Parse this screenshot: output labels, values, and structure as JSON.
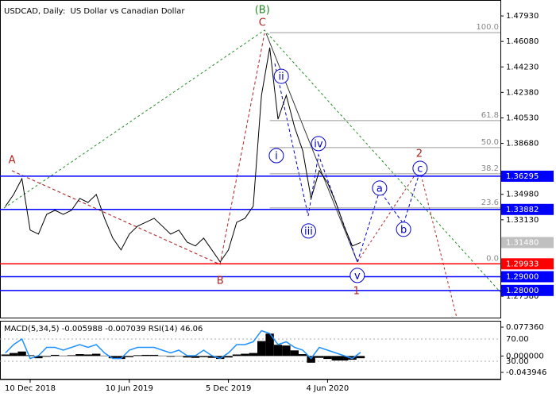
{
  "chart_data": [
    {
      "type": "line",
      "title": "USDCAD, Daily:  US Dollar vs Canadian Dollar",
      "categories": [
        null,
        null,
        null,
        "10 Dec 2018",
        null,
        null,
        null,
        null,
        null,
        null,
        null,
        null,
        null,
        null,
        null,
        "10 Jun 2019",
        null,
        null,
        null,
        null,
        null,
        null,
        null,
        null,
        null,
        null,
        null,
        "5 Dec 2019",
        null,
        null,
        null,
        null,
        null,
        null,
        null,
        null,
        null,
        null,
        null,
        "4 Jun 2020",
        null,
        null,
        null,
        null,
        null,
        null,
        null,
        null,
        null,
        null,
        null,
        null,
        null,
        null,
        null,
        null,
        null,
        null,
        null,
        null
      ],
      "values": [
        1.3411,
        1.3497,
        1.3612,
        1.3238,
        1.3209,
        1.3353,
        1.3382,
        1.3353,
        1.3382,
        1.3468,
        1.3439,
        1.3497,
        1.3324,
        1.318,
        1.3094,
        1.3209,
        1.3267,
        1.3295,
        1.3324,
        1.3267,
        1.3209,
        1.3238,
        1.3151,
        1.3123,
        1.318,
        1.3094,
        1.3007,
        1.3094,
        1.3295,
        1.3324,
        1.3411,
        1.4217,
        1.4563,
        1.4044,
        1.4217,
        1.3987,
        1.3814,
        1.3468,
        1.367,
        1.3583,
        1.3439,
        1.3267,
        1.3123,
        1.3148,
        null,
        null,
        null,
        null,
        null,
        null,
        null,
        null,
        null,
        null,
        null,
        null,
        null,
        null,
        null,
        null
      ],
      "color": "#000000",
      "ylim": [
        1.2603,
        1.488
      ],
      "yticks": [
        {
          "value": 1.4793,
          "label": "1.47930"
        },
        {
          "value": 1.4608,
          "label": "1.46080"
        },
        {
          "value": 1.4423,
          "label": "1.44230"
        },
        {
          "value": 1.4238,
          "label": "1.42380"
        },
        {
          "value": 1.4053,
          "label": "1.40530"
        },
        {
          "value": 1.3868,
          "label": "1.38680"
        },
        {
          "value": 1.3498,
          "label": "1.34980"
        },
        {
          "value": 1.3313,
          "label": "1.33130"
        },
        {
          "value": 1.2758,
          "label": "1.27580"
        }
      ],
      "levels": [
        {
          "value": 1.36295,
          "color": "#0000ff"
        },
        {
          "value": 1.33882,
          "color": "#0000ff"
        },
        {
          "value": 1.3148,
          "label": "1.31480",
          "color": "#c0c0c0"
        },
        {
          "value": 1.29933,
          "color": "#ff0000"
        },
        {
          "value": 1.29,
          "label": "1.29000",
          "color": "#0000ff"
        },
        {
          "value": 1.28,
          "label": "1.28000",
          "color": "#0000ff"
        }
      ],
      "fib_levels": [
        {
          "label": "100.0",
          "value": 1.4672
        },
        {
          "label": "61.8",
          "value": 1.4033
        },
        {
          "label": "50.0",
          "value": 1.3837
        },
        {
          "label": "38.2",
          "value": 1.3647
        },
        {
          "label": "23.6",
          "value": 1.3399
        },
        {
          "label": "0.0",
          "value": 1.2993
        }
      ],
      "annotations": [
        {
          "text": "(B)",
          "x": 31.1,
          "y": 1.4839,
          "color": "#228b22",
          "circled": false
        },
        {
          "text": "C",
          "x": 31.1,
          "y": 1.4747,
          "color": "#b22222",
          "circled": false
        },
        {
          "text": "A",
          "x": 0.8,
          "y": 1.375,
          "color": "#b22222",
          "circled": false
        },
        {
          "text": "B",
          "x": 26,
          "y": 1.2875,
          "color": "#b22222",
          "circled": false
        },
        {
          "text": "2",
          "x": 50.1,
          "y": 1.3797,
          "color": "#b22222",
          "circled": false
        },
        {
          "text": "1",
          "x": 42.5,
          "y": 1.28,
          "color": "#b22222",
          "circled": false
        },
        {
          "text": "ii",
          "x": 33.4,
          "y": 1.4355,
          "color": "#0000cd",
          "circled": true
        },
        {
          "text": "i",
          "x": 32.8,
          "y": 1.3779,
          "color": "#0000cd",
          "circled": true
        },
        {
          "text": "iv",
          "x": 37.9,
          "y": 1.3866,
          "color": "#0000cd",
          "circled": true
        },
        {
          "text": "iii",
          "x": 36.7,
          "y": 1.3232,
          "color": "#0000cd",
          "circled": true
        },
        {
          "text": "v",
          "x": 42.6,
          "y": 1.2909,
          "color": "#0000cd",
          "circled": true
        },
        {
          "text": "a",
          "x": 45.3,
          "y": 1.3543,
          "color": "#0000cd",
          "circled": true
        },
        {
          "text": "b",
          "x": 48.2,
          "y": 1.3244,
          "color": "#0000cd",
          "circled": true
        },
        {
          "text": "c",
          "x": 50.2,
          "y": 1.3687,
          "color": "#0000cd",
          "circled": true
        }
      ]
    },
    {
      "type": "indicator",
      "title": "MACD(5,34,5) -0.005988 -0.007039 RSI(14) 46.06",
      "series": [
        {
          "color": "#000000",
          "values": [
            0.004,
            0.008,
            0.012,
            0.002,
            -0.006,
            -0.002,
            0.003,
            0.001,
            0.002,
            0.005,
            0.004,
            0.006,
            0.001,
            -0.006,
            -0.008,
            -0.003,
            0.002,
            0.003,
            0.003,
            0.001,
            -0.002,
            -0.001,
            -0.004,
            -0.005,
            -0.003,
            -0.005,
            -0.008,
            -0.004,
            0.004,
            0.006,
            0.008,
            0.04,
            0.06,
            0.03,
            0.028,
            0.015,
            0.005,
            -0.018,
            -0.005,
            -0.008,
            -0.012,
            -0.012,
            -0.01,
            -0.006,
            null,
            null,
            null,
            null,
            null,
            null,
            null,
            null,
            null,
            null,
            null,
            null,
            null,
            null,
            null,
            null
          ]
        },
        {
          "color": "#1e90ff",
          "axis": "y2",
          "values": [
            45,
            60,
            70,
            35,
            40,
            55,
            55,
            50,
            55,
            60,
            55,
            60,
            45,
            35,
            35,
            50,
            55,
            55,
            55,
            50,
            45,
            50,
            40,
            40,
            50,
            40,
            35,
            45,
            60,
            60,
            65,
            85,
            80,
            60,
            65,
            55,
            50,
            35,
            55,
            50,
            45,
            40,
            35,
            46.06,
            null,
            null,
            null,
            null,
            null,
            null,
            null,
            null,
            null,
            null,
            null,
            null,
            null,
            null,
            null,
            null
          ]
        }
      ],
      "ylim": [
        -0.061,
        0.0923
      ],
      "yticks": [
        {
          "value": 0.07736,
          "label": "0.077360"
        },
        {
          "value": 0,
          "label": "0.000000"
        },
        {
          "value": -0.043946,
          "label": "-0.043946"
        }
      ],
      "y2lim": [
        -1.4,
        101.4
      ],
      "y2ticks": [
        {
          "value": 70,
          "label": "70.00"
        },
        {
          "value": 30,
          "label": "30.00"
        }
      ],
      "grid": true
    }
  ]
}
